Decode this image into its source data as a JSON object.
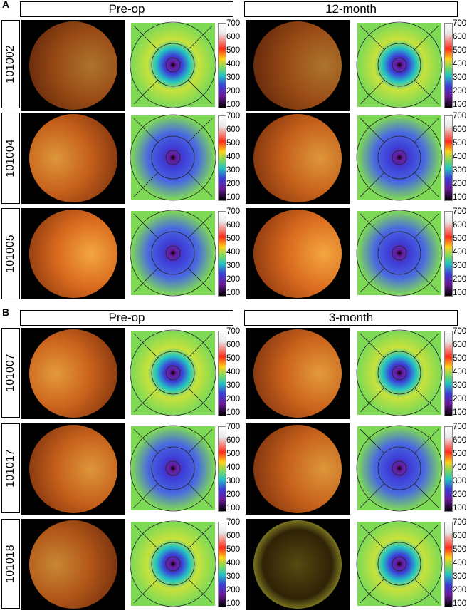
{
  "panels": [
    {
      "letter": "A",
      "header_left": "Pre-op",
      "header_right": "12-month",
      "patients": [
        "101002",
        "101004",
        "101005"
      ]
    },
    {
      "letter": "B",
      "header_left": "Pre-op",
      "header_right": "3-month",
      "patients": [
        "101007",
        "101017",
        "101018"
      ]
    }
  ],
  "colorbar_ticks": [
    "700",
    "600",
    "500",
    "400",
    "300",
    "200",
    "100"
  ],
  "colors": {
    "fundus_light": "#f4a640",
    "fundus_dark": "#7a2c0c",
    "map_green": "#7ed957",
    "map_blue": "#3d3dd8",
    "map_purple": "#6a1a9a"
  }
}
